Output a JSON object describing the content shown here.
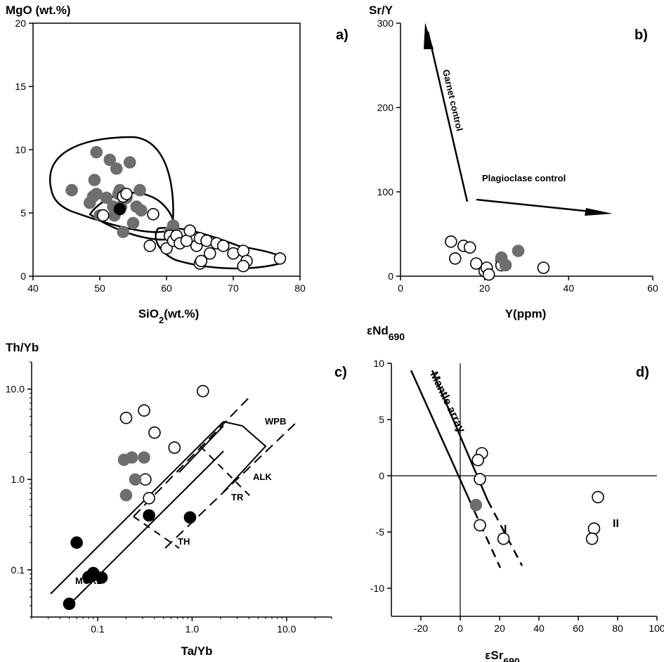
{
  "chart_data": [
    {
      "panel": "a)",
      "type": "scatter",
      "ylabel": "MgO (wt.%)",
      "xlabel": "SiO2(wt.%)",
      "xlim": [
        40,
        80
      ],
      "ylim": [
        0,
        20
      ],
      "xticks": [
        40,
        50,
        60,
        70,
        80
      ],
      "yticks": [
        0,
        5,
        10,
        15,
        20
      ],
      "series": [
        {
          "style": "gray",
          "points": [
            [
              45.8,
              6.8
            ],
            [
              48.5,
              5.8
            ],
            [
              49,
              6.3
            ],
            [
              49.2,
              7.6
            ],
            [
              49.5,
              9.8
            ],
            [
              49.5,
              6.5
            ],
            [
              50,
              4.8
            ],
            [
              51,
              6.2
            ],
            [
              51.5,
              9.2
            ],
            [
              52,
              5.5
            ],
            [
              52.2,
              4.8
            ],
            [
              52.5,
              8.5
            ],
            [
              52.8,
              6.5
            ],
            [
              53,
              6.8
            ],
            [
              53.2,
              5.5
            ],
            [
              53.5,
              3.5
            ],
            [
              54,
              6.2
            ],
            [
              54.5,
              9
            ],
            [
              55,
              4.2
            ],
            [
              55.5,
              5.5
            ],
            [
              56,
              6.8
            ],
            [
              56.2,
              5.2
            ],
            [
              60.5,
              3.5
            ],
            [
              61,
              4
            ]
          ]
        },
        {
          "style": "black",
          "points": [
            [
              53,
              5.3
            ]
          ]
        },
        {
          "style": "open",
          "points": [
            [
              50.5,
              4.8
            ],
            [
              53.5,
              6.3
            ],
            [
              54,
              6.5
            ],
            [
              58,
              4.9
            ],
            [
              57.5,
              2.4
            ],
            [
              60,
              2.2
            ],
            [
              60.5,
              3.2
            ],
            [
              61,
              2.8
            ],
            [
              61.5,
              3.2
            ],
            [
              62,
              2.6
            ],
            [
              63,
              2.8
            ],
            [
              63.5,
              3.6
            ],
            [
              64.5,
              2.4
            ],
            [
              65,
              1
            ],
            [
              65,
              3
            ],
            [
              65.2,
              1.2
            ],
            [
              66,
              2.8
            ],
            [
              66.5,
              1.8
            ],
            [
              67.5,
              2.6
            ],
            [
              68.5,
              2.4
            ],
            [
              70,
              1.8
            ],
            [
              71.5,
              2
            ],
            [
              72,
              1.2
            ],
            [
              71.5,
              0.8
            ],
            [
              77,
              1.4
            ]
          ]
        }
      ]
    },
    {
      "panel": "b)",
      "type": "scatter",
      "ylabel": "Sr/Y",
      "xlabel": "Y(ppm)",
      "xlim": [
        0,
        60
      ],
      "ylim": [
        0,
        300
      ],
      "xticks": [
        0,
        20,
        40,
        60
      ],
      "yticks": [
        0,
        100,
        200,
        300
      ],
      "annotations": [
        "Garnet control",
        "Plagioclase control"
      ],
      "series": [
        {
          "style": "open",
          "points": [
            [
              12,
              41
            ],
            [
              13,
              21
            ],
            [
              15,
              36
            ],
            [
              16.5,
              34
            ],
            [
              18,
              15
            ],
            [
              20,
              6
            ],
            [
              20.5,
              10
            ],
            [
              21,
              2
            ],
            [
              24,
              20
            ],
            [
              24,
              13
            ],
            [
              34,
              10
            ]
          ]
        },
        {
          "style": "gray",
          "points": [
            [
              24,
              22
            ],
            [
              25,
              13
            ],
            [
              28,
              30
            ]
          ]
        }
      ]
    },
    {
      "panel": "c)",
      "type": "scatter",
      "ylabel": "Th/Yb",
      "xlabel": "Ta/Yb",
      "xscale": "log",
      "yscale": "log",
      "xlim": [
        0.02,
        30
      ],
      "ylim": [
        0.03,
        20
      ],
      "xticks": [
        "0.1",
        "1.0",
        "10.0"
      ],
      "yticks": [
        "0.1",
        "1.0",
        "10.0"
      ],
      "annotations": [
        "WPB",
        "ALK",
        "TR",
        "TH",
        "MORB"
      ],
      "series": [
        {
          "style": "open",
          "points": [
            [
              0.2,
              4.8
            ],
            [
              0.31,
              5.8
            ],
            [
              0.4,
              3.3
            ],
            [
              0.65,
              2.25
            ],
            [
              1.3,
              9.5
            ],
            [
              0.32,
              1
            ],
            [
              0.35,
              0.62
            ]
          ]
        },
        {
          "style": "gray",
          "points": [
            [
              0.19,
              1.65
            ],
            [
              0.23,
              1.75
            ],
            [
              0.31,
              1.75
            ],
            [
              0.25,
              1
            ],
            [
              0.2,
              0.67
            ]
          ]
        },
        {
          "style": "black",
          "points": [
            [
              0.06,
              0.2
            ],
            [
              0.08,
              0.083
            ],
            [
              0.09,
              0.092
            ],
            [
              0.11,
              0.082
            ],
            [
              0.05,
              0.042
            ],
            [
              0.35,
              0.4
            ],
            [
              0.95,
              0.38
            ]
          ]
        }
      ]
    },
    {
      "panel": "d)",
      "type": "scatter",
      "ylabel": "εNd690",
      "xlabel": "εSr690",
      "xlim": [
        -35,
        100
      ],
      "ylim": [
        -12.5,
        10
      ],
      "xticks": [
        -20,
        0,
        20,
        40,
        60,
        80,
        100
      ],
      "yticks": [
        -10,
        -5,
        0,
        5,
        10
      ],
      "annotations": [
        "Mantle array",
        "I",
        "II"
      ],
      "series": [
        {
          "style": "open",
          "points": [
            [
              11,
              2
            ],
            [
              9,
              1.4
            ],
            [
              10,
              -0.3
            ],
            [
              10,
              -4.4
            ],
            [
              22,
              -5.6
            ],
            [
              70,
              -1.9
            ],
            [
              68,
              -4.7
            ],
            [
              67,
              -5.6
            ]
          ]
        },
        {
          "style": "gray",
          "points": [
            [
              8,
              -2.6
            ]
          ]
        }
      ]
    }
  ]
}
